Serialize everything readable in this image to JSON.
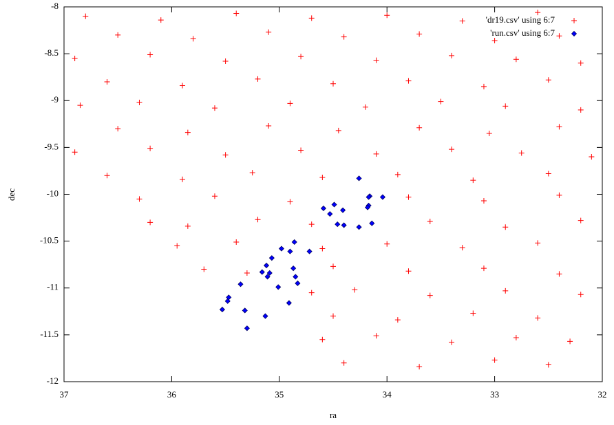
{
  "chart_data": {
    "type": "scatter",
    "x_label": "ra",
    "y_label": "dec",
    "xlim": [
      37,
      32
    ],
    "ylim": [
      -12,
      -8
    ],
    "xticks": [
      37,
      36,
      35,
      34,
      33,
      32
    ],
    "yticks": [
      -8,
      -8.5,
      -9,
      -9.5,
      -10,
      -10.5,
      -11,
      -11.5,
      -12
    ],
    "legend_position": "upper right",
    "series": [
      {
        "name": "'dr19.csv' using 6:7",
        "color": "#ff0000",
        "marker": "plus",
        "x": [
          36.8,
          36.1,
          35.4,
          34.7,
          34.0,
          33.3,
          32.6,
          36.5,
          35.8,
          35.1,
          34.4,
          33.7,
          33.0,
          32.4,
          36.9,
          36.2,
          35.5,
          34.8,
          34.1,
          33.4,
          32.8,
          32.2,
          36.6,
          35.9,
          35.2,
          34.5,
          33.8,
          33.1,
          32.5,
          36.85,
          36.3,
          35.6,
          34.9,
          34.2,
          33.5,
          32.9,
          32.2,
          36.5,
          35.85,
          35.1,
          34.45,
          33.7,
          33.05,
          32.4,
          36.9,
          36.2,
          35.5,
          34.8,
          34.1,
          33.4,
          32.75,
          32.1,
          36.6,
          35.9,
          35.25,
          34.6,
          33.9,
          33.2,
          32.5,
          36.3,
          35.6,
          34.9,
          33.8,
          33.1,
          32.4,
          36.2,
          35.85,
          35.2,
          34.7,
          33.6,
          32.9,
          32.2,
          35.95,
          35.4,
          34.6,
          34.0,
          33.3,
          32.6,
          35.7,
          35.3,
          34.5,
          33.8,
          33.1,
          32.4,
          34.7,
          34.3,
          33.6,
          32.9,
          32.2,
          34.5,
          33.9,
          33.2,
          32.6,
          34.6,
          34.1,
          33.4,
          32.8,
          32.3,
          34.4,
          33.7,
          33.0,
          32.5
        ],
        "y": [
          -8.1,
          -8.14,
          -8.07,
          -8.12,
          -8.09,
          -8.15,
          -8.06,
          -8.3,
          -8.34,
          -8.27,
          -8.32,
          -8.29,
          -8.36,
          -8.31,
          -8.55,
          -8.51,
          -8.58,
          -8.53,
          -8.57,
          -8.52,
          -8.56,
          -8.6,
          -8.8,
          -8.84,
          -8.77,
          -8.82,
          -8.79,
          -8.85,
          -8.78,
          -9.05,
          -9.02,
          -9.08,
          -9.03,
          -9.07,
          -9.01,
          -9.06,
          -9.1,
          -9.3,
          -9.34,
          -9.27,
          -9.32,
          -9.29,
          -9.35,
          -9.28,
          -9.55,
          -9.51,
          -9.58,
          -9.53,
          -9.57,
          -9.52,
          -9.56,
          -9.6,
          -9.8,
          -9.84,
          -9.77,
          -9.82,
          -9.79,
          -9.85,
          -9.78,
          -10.05,
          -10.02,
          -10.08,
          -10.03,
          -10.07,
          -10.01,
          -10.3,
          -10.34,
          -10.27,
          -10.32,
          -10.29,
          -10.35,
          -10.28,
          -10.55,
          -10.51,
          -10.58,
          -10.53,
          -10.57,
          -10.52,
          -10.8,
          -10.84,
          -10.77,
          -10.82,
          -10.79,
          -10.85,
          -11.05,
          -11.02,
          -11.08,
          -11.03,
          -11.07,
          -11.3,
          -11.34,
          -11.27,
          -11.32,
          -11.55,
          -11.51,
          -11.58,
          -11.53,
          -11.57,
          -11.8,
          -11.84,
          -11.77,
          -11.82
        ]
      },
      {
        "name": "'run.csv' using 6:7",
        "color": "#0000ff",
        "marker": "diamond",
        "x": [
          34.26,
          34.16,
          34.17,
          34.17,
          34.18,
          34.04,
          34.49,
          34.59,
          34.53,
          34.41,
          34.46,
          34.4,
          34.26,
          34.14,
          34.86,
          34.9,
          34.98,
          34.72,
          35.07,
          35.12,
          35.09,
          35.16,
          35.11,
          34.87,
          34.85,
          35.01,
          34.83,
          35.36,
          35.47,
          35.48,
          35.32,
          34.91,
          35.13,
          35.3,
          35.53
        ],
        "y": [
          -9.83,
          -10.02,
          -10.03,
          -10.12,
          -10.14,
          -10.03,
          -10.11,
          -10.15,
          -10.21,
          -10.17,
          -10.32,
          -10.33,
          -10.35,
          -10.31,
          -10.51,
          -10.61,
          -10.58,
          -10.61,
          -10.68,
          -10.76,
          -10.84,
          -10.83,
          -10.88,
          -10.79,
          -10.88,
          -10.99,
          -10.95,
          -10.96,
          -11.1,
          -11.14,
          -11.24,
          -11.16,
          -11.3,
          -11.43,
          -11.23
        ]
      }
    ]
  }
}
